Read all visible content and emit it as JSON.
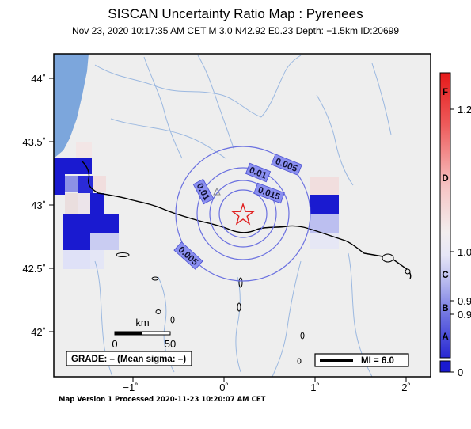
{
  "header": {
    "title": "SISCAN Uncertainty Ratio Map : Pyrenees",
    "subtitle": "Nov 23, 2020 10:17:35 AM CET   M 3.0   N42.92 E0.23   Depth: −1.5km   ID:20699"
  },
  "axes": {
    "lat_ticks": [
      "44˚",
      "43.5˚",
      "43˚",
      "42.5˚",
      "42˚"
    ],
    "lon_ticks": [
      "−1˚",
      "0˚",
      "1˚",
      "2˚"
    ]
  },
  "contours": {
    "labels": [
      "0.005",
      "0.01",
      "0.015",
      "0.01",
      "0.005"
    ]
  },
  "scale_bar": {
    "unit": "km",
    "ticks": [
      "0",
      "50"
    ]
  },
  "grade_box": {
    "text": "GRADE: – (Mean sigma: –)"
  },
  "mi_box": {
    "text": "MI = 6.0"
  },
  "colorbar": {
    "values": [
      "1.2",
      "1.0",
      "0.9",
      "0.9",
      "0"
    ],
    "letters": [
      "F",
      "D",
      "C",
      "B",
      "A"
    ]
  },
  "footer": {
    "text": "Map Version 1 Processed 2020-11-23 10:20:07 AM CET"
  },
  "colors": {
    "sea": "#7ca6dc",
    "land": "#eeeeee",
    "border": "#000000",
    "rivers": "#9bb8e0",
    "contour": "#6a70e0",
    "epicenter": "#e02020"
  },
  "icons": {
    "epicenter": "star-icon",
    "station": "triangle-icon"
  }
}
